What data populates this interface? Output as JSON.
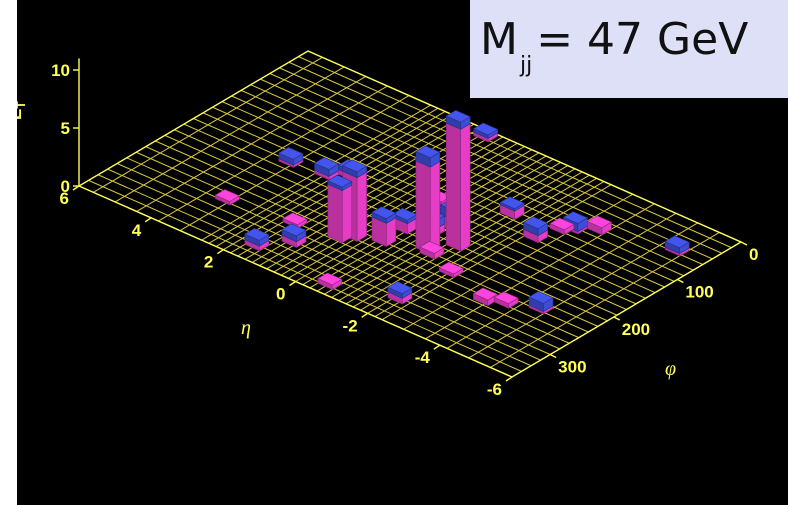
{
  "title": {
    "prefix": "M",
    "subscript": "jj",
    "suffix": "= 47 GeV"
  },
  "chart_data": {
    "type": "lego",
    "xlabel": "η",
    "ylabel": "φ",
    "zlabel": "E",
    "zlabel_sub": "T",
    "eta_range": [
      -6,
      6
    ],
    "phi_range": [
      0,
      360
    ],
    "et_range": [
      0,
      10
    ],
    "eta_ticks": [
      "6",
      "4",
      "2",
      "0",
      "-2",
      "-4",
      "-6"
    ],
    "phi_ticks": [
      "0",
      "100",
      "200",
      "300"
    ],
    "et_ticks": [
      "0",
      "5",
      "10"
    ],
    "colors": {
      "em": "#ff44dd",
      "had": "#4455ee",
      "grid": "#ffff55",
      "background": "#000000"
    },
    "towers": [
      {
        "eta": -1.6,
        "phi": 195,
        "em": 10.5,
        "had": 0.6
      },
      {
        "eta": -1.2,
        "phi": 220,
        "em": 7.5,
        "had": 0.8
      },
      {
        "eta": 0.3,
        "phi": 250,
        "em": 5.5,
        "had": 0.5
      },
      {
        "eta": 0.5,
        "phi": 262,
        "em": 4.5,
        "had": 0.3
      },
      {
        "eta": -0.3,
        "phi": 238,
        "em": 2.0,
        "had": 0.4
      },
      {
        "eta": -1.0,
        "phi": 170,
        "em": 1.0,
        "had": 0.8
      },
      {
        "eta": -0.8,
        "phi": 190,
        "em": 0.6,
        "had": 0.7
      },
      {
        "eta": -0.3,
        "phi": 205,
        "em": 0.9,
        "had": 0.3
      },
      {
        "eta": 1.1,
        "phi": 300,
        "em": 0.5,
        "had": 0.5
      },
      {
        "eta": 1.6,
        "phi": 330,
        "em": 0.4,
        "had": 0.5
      },
      {
        "eta": -3.0,
        "phi": 90,
        "em": 0.2,
        "had": 0.7
      },
      {
        "eta": -2.6,
        "phi": 130,
        "em": 0.6,
        "had": 0.6
      },
      {
        "eta": 2.4,
        "phi": 175,
        "em": 0.3,
        "had": 0.6
      },
      {
        "eta": 3.3,
        "phi": 180,
        "em": 0.2,
        "had": 0.5
      },
      {
        "eta": 2.0,
        "phi": 160,
        "em": 0.4,
        "had": 0.4
      },
      {
        "eta": -5.2,
        "phi": 55,
        "em": 0.2,
        "had": 0.5
      },
      {
        "eta": -4.6,
        "phi": 235,
        "em": 0.2,
        "had": 0.7
      },
      {
        "eta": -2.1,
        "phi": 315,
        "em": 0.5,
        "had": 0.4
      },
      {
        "eta": 0.9,
        "phi": 10,
        "em": 0.3,
        "had": 0.3
      },
      {
        "eta": -0.6,
        "phi": 340,
        "em": 0.4,
        "had": 0.0
      },
      {
        "eta": -1.6,
        "phi": 110,
        "em": 0.7,
        "had": 0.2
      },
      {
        "eta": -3.4,
        "phi": 75,
        "em": 0.6,
        "had": 0.0
      },
      {
        "eta": -2.2,
        "phi": 240,
        "em": 0.3,
        "had": 0.0
      },
      {
        "eta": -3.5,
        "phi": 260,
        "em": 0.5,
        "had": 0.0
      },
      {
        "eta": -3.9,
        "phi": 250,
        "em": 0.4,
        "had": 0.0
      },
      {
        "eta": 3.3,
        "phi": 280,
        "em": 0.3,
        "had": 0.0
      },
      {
        "eta": -1.4,
        "phi": 225,
        "em": 0.5,
        "had": 0.0
      },
      {
        "eta": -0.1,
        "phi": 140,
        "em": 0.4,
        "had": 0.0
      },
      {
        "eta": 1.6,
        "phi": 270,
        "em": 0.3,
        "had": 0.0
      },
      {
        "eta": -2.8,
        "phi": 100,
        "em": 0.4,
        "had": 0.0
      }
    ]
  }
}
